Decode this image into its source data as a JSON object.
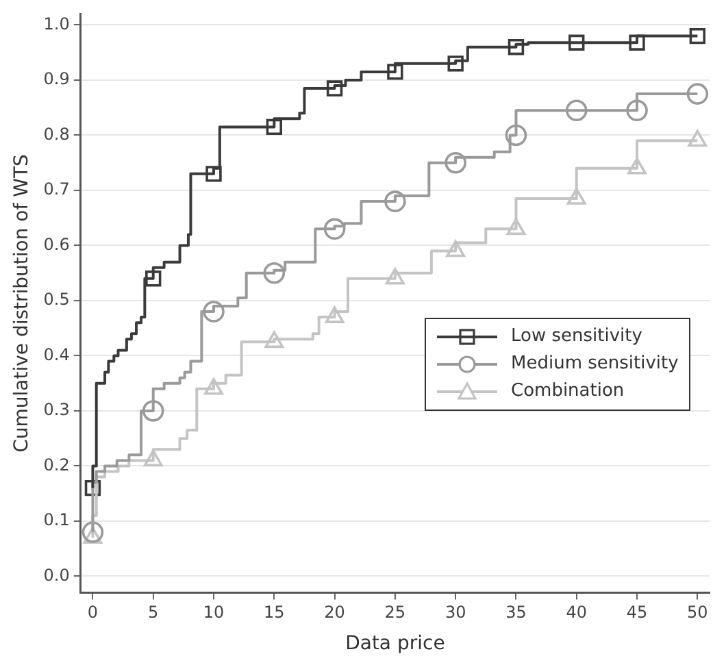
{
  "chart_data": {
    "type": "step",
    "xlabel": "Data price",
    "ylabel": "Cumulative distribution of WTS",
    "xlim": [
      -1,
      51
    ],
    "xticks": [
      0,
      5,
      10,
      15,
      20,
      25,
      30,
      35,
      40,
      45,
      50
    ],
    "ylim": [
      -0.03,
      1.02
    ],
    "yticks": [
      {
        "value": 0,
        "label": "0.0"
      },
      0.1,
      0.2,
      0.3,
      0.4,
      0.5,
      0.6,
      0.7,
      0.8,
      0.9,
      {
        "value": 1,
        "label": "1.0"
      }
    ],
    "grid": "y",
    "legend": "right",
    "series": [
      {
        "name": "Low sensitivity",
        "color": "#3a3a3a",
        "x": [
          0,
          0.3,
          1,
          1.3,
          1.75,
          2.1,
          2.8,
          3.2,
          3.6,
          4,
          4.3,
          5,
          5.9,
          7.2,
          7.9,
          8.1,
          10,
          10.5,
          15,
          17.1,
          17.5,
          20,
          20.9,
          22.2,
          25,
          30,
          31,
          35,
          36,
          40,
          45,
          47.5,
          50
        ],
        "values": [
          0.16,
          0.2,
          0.35,
          0.37,
          0.39,
          0.4,
          0.41,
          0.43,
          0.44,
          0.46,
          0.47,
          0.54,
          0.56,
          0.57,
          0.6,
          0.62,
          0.73,
          0.74,
          0.815,
          0.83,
          0.84,
          0.885,
          0.89,
          0.9,
          0.915,
          0.93,
          0.935,
          0.96,
          0.965,
          0.968,
          0.968,
          0.98,
          0.98
        ]
      },
      {
        "name": "Medium sensitivity",
        "color": "#9a9a9a",
        "x": [
          0,
          0.3,
          1,
          2,
          3,
          4,
          5,
          5.9,
          7.2,
          7.6,
          8.1,
          9,
          10,
          12,
          12.7,
          15,
          15.9,
          18.4,
          20,
          20.8,
          22.2,
          25,
          27.8,
          30,
          33.2,
          34.5,
          35,
          40,
          45,
          50
        ],
        "values": [
          0.08,
          0.17,
          0.19,
          0.2,
          0.21,
          0.22,
          0.3,
          0.34,
          0.35,
          0.36,
          0.37,
          0.39,
          0.48,
          0.49,
          0.505,
          0.55,
          0.555,
          0.57,
          0.63,
          0.635,
          0.64,
          0.68,
          0.69,
          0.75,
          0.76,
          0.77,
          0.8,
          0.845,
          0.845,
          0.875
        ]
      },
      {
        "name": "Combination",
        "color": "#c4c4c4",
        "x": [
          0,
          0.3,
          1,
          2.1,
          3,
          5,
          7.2,
          7.8,
          8.6,
          10,
          11,
          12.3,
          15,
          18.2,
          18.7,
          20,
          21.1,
          25,
          28,
          30,
          32.5,
          35,
          40,
          45,
          50
        ],
        "values": [
          0.07,
          0.11,
          0.18,
          0.19,
          0.2,
          0.21,
          0.23,
          0.25,
          0.265,
          0.34,
          0.35,
          0.365,
          0.425,
          0.43,
          0.44,
          0.47,
          0.48,
          0.54,
          0.55,
          0.59,
          0.605,
          0.63,
          0.685,
          0.74,
          0.79
        ]
      },
      {
        "type": "scatter",
        "color": "#3a3a3a",
        "marker": "square",
        "x": [
          0,
          5,
          10,
          15,
          20,
          25,
          30,
          35,
          40,
          45,
          50
        ],
        "values": [
          0.16,
          0.54,
          0.73,
          0.815,
          0.885,
          0.915,
          0.93,
          0.96,
          0.968,
          0.968,
          0.98
        ]
      },
      {
        "type": "scatter",
        "color": "#9a9a9a",
        "marker": "circle",
        "x": [
          0,
          5,
          10,
          15,
          20,
          25,
          30,
          35,
          40,
          45,
          50
        ],
        "values": [
          0.08,
          0.3,
          0.48,
          0.55,
          0.63,
          0.68,
          0.75,
          0.8,
          0.845,
          0.845,
          0.875
        ]
      },
      {
        "type": "scatter",
        "color": "#c4c4c4",
        "marker": "triangle",
        "x": [
          0,
          5,
          10,
          15,
          20,
          25,
          30,
          35,
          40,
          45,
          50
        ],
        "values": [
          0.07,
          0.21,
          0.34,
          0.425,
          0.47,
          0.54,
          0.59,
          0.63,
          0.685,
          0.74,
          0.79
        ]
      }
    ]
  }
}
